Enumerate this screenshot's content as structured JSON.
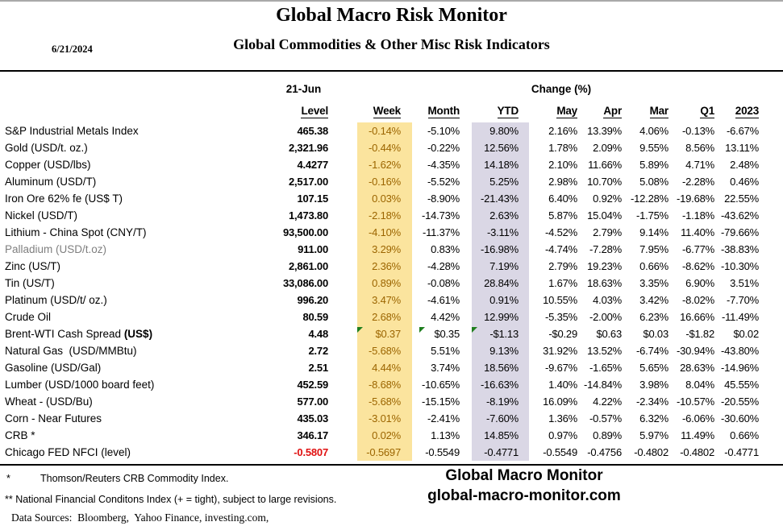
{
  "header": {
    "date": "6/21/2024",
    "title": "Global Macro Risk Monitor",
    "subtitle": "Global Commodities & Other Misc Risk Indicators"
  },
  "table": {
    "group_headers": {
      "level": "21-Jun",
      "change": "Change (%)"
    },
    "columns": [
      "Level",
      "Week",
      "Month",
      "YTD",
      "May",
      "Apr",
      "Mar",
      "Q1",
      "2023"
    ],
    "rows": [
      {
        "label": "S&P Industrial Metals Index",
        "values": [
          "465.38",
          "-0.14%",
          "-5.10%",
          "9.80%",
          "2.16%",
          "13.39%",
          "4.06%",
          "-0.13%",
          "-6.67%"
        ]
      },
      {
        "label": "Gold (USD/t. oz.)",
        "values": [
          "2,321.96",
          "-0.44%",
          "-0.22%",
          "12.56%",
          "1.78%",
          "2.09%",
          "9.55%",
          "8.56%",
          "13.11%"
        ]
      },
      {
        "label": "Copper (USD/lbs)",
        "values": [
          "4.4277",
          "-1.62%",
          "-4.35%",
          "14.18%",
          "2.10%",
          "11.66%",
          "5.89%",
          "4.71%",
          "2.48%"
        ]
      },
      {
        "label": "Aluminum (USD/T)",
        "values": [
          "2,517.00",
          "-0.16%",
          "-5.52%",
          "5.25%",
          "2.98%",
          "10.70%",
          "5.08%",
          "-2.28%",
          "0.46%"
        ]
      },
      {
        "label": "Iron Ore 62% fe (US$ T)",
        "values": [
          "107.15",
          "0.03%",
          "-8.90%",
          "-21.43%",
          "6.40%",
          "0.92%",
          "-12.28%",
          "-19.68%",
          "22.55%"
        ]
      },
      {
        "label": "Nickel (USD/T)",
        "values": [
          "1,473.80",
          "-2.18%",
          "-14.73%",
          "2.63%",
          "5.87%",
          "15.04%",
          "-1.75%",
          "-1.18%",
          "-43.62%"
        ]
      },
      {
        "label": "Lithium - China Spot (CNY/T)",
        "values": [
          "93,500.00",
          "-4.10%",
          "-11.37%",
          "-3.11%",
          "-4.52%",
          "2.79%",
          "9.14%",
          "11.40%",
          "-79.66%"
        ]
      },
      {
        "label": "Palladium (USD/t.oz)",
        "label_gray": true,
        "values": [
          "911.00",
          "3.29%",
          "0.83%",
          "-16.98%",
          "-4.74%",
          "-7.28%",
          "7.95%",
          "-6.77%",
          "-38.83%"
        ]
      },
      {
        "label": "Zinc (US/T)",
        "values": [
          "2,861.00",
          "2.36%",
          "-4.28%",
          "7.19%",
          "2.79%",
          "19.23%",
          "0.66%",
          "-8.62%",
          "-10.30%"
        ]
      },
      {
        "label": "Tin (US/T)",
        "values": [
          "33,086.00",
          "0.89%",
          "-0.08%",
          "28.84%",
          "1.67%",
          "18.63%",
          "3.35%",
          "6.90%",
          "3.51%"
        ]
      },
      {
        "label": "Platinum (USD/t/ oz.)",
        "values": [
          "996.20",
          "3.47%",
          "-4.61%",
          "0.91%",
          "10.55%",
          "4.03%",
          "3.42%",
          "-8.02%",
          "-7.70%"
        ]
      },
      {
        "label": "Crude Oil",
        "values": [
          "80.59",
          "2.68%",
          "4.42%",
          "12.99%",
          "-5.35%",
          "-2.00%",
          "6.23%",
          "16.66%",
          "-11.49%"
        ]
      },
      {
        "label": "Brent-WTI Cash Spread ",
        "label_bold": "(US$)",
        "green_flags": [
          "week",
          "month",
          "ytd"
        ],
        "values": [
          "4.48",
          "$0.37",
          "$0.35",
          "-$1.13",
          "-$0.29",
          "$0.63",
          "$0.03",
          "-$1.82",
          "$0.02"
        ]
      },
      {
        "label": "Natural Gas  (USD/MMBtu)",
        "values": [
          "2.72",
          "-5.68%",
          "5.51%",
          "9.13%",
          "31.92%",
          "13.52%",
          "-6.74%",
          "-30.94%",
          "-43.80%"
        ]
      },
      {
        "label": "Gasoline (USD/Gal)",
        "values": [
          "2.51",
          "4.44%",
          "3.74%",
          "18.56%",
          "-9.67%",
          "-1.65%",
          "5.65%",
          "28.63%",
          "-14.96%"
        ]
      },
      {
        "label": "Lumber (USD/1000 board feet)",
        "values": [
          "452.59",
          "-8.68%",
          "-10.65%",
          "-16.63%",
          "1.40%",
          "-14.84%",
          "3.98%",
          "8.04%",
          "45.55%"
        ]
      },
      {
        "label": "Wheat - (USD/Bu)",
        "values": [
          "577.00",
          "-5.68%",
          "-15.15%",
          "-8.19%",
          "16.09%",
          "4.22%",
          "-2.34%",
          "-10.57%",
          "-20.55%"
        ]
      },
      {
        "label": "Corn - Near Futures",
        "values": [
          "435.03",
          "-3.01%",
          "-2.41%",
          "-7.60%",
          "1.36%",
          "-0.57%",
          "6.32%",
          "-6.06%",
          "-30.60%"
        ]
      },
      {
        "label": "CRB *",
        "values": [
          "346.17",
          "0.02%",
          "1.13%",
          "14.85%",
          "0.97%",
          "0.89%",
          "5.97%",
          "11.49%",
          "0.66%"
        ]
      },
      {
        "label": "Chicago FED NFCI (level)",
        "level_red": true,
        "values": [
          "-0.5807",
          "-0.5697",
          "-0.5549",
          "-0.4771",
          "-0.5549",
          "-0.4756",
          "-0.4802",
          "-0.4802",
          "-0.4771"
        ]
      }
    ]
  },
  "footnotes": {
    "crb_marker": "*",
    "crb_text": "Thomson/Reuters CRB Commodity Index.",
    "nfci_text": "** National Financial Conditons Index (+ = tight), subject to large revisions.",
    "sources_text": "Data Sources:  Bloomberg,  Yahoo Finance, investing.com,",
    "brand_name": "Global Macro Monitor",
    "brand_site": "global-macro-monitor.com"
  },
  "colors": {
    "week_highlight_bg": "#FBE49E",
    "week_highlight_text": "#9C6500",
    "ytd_highlight_bg": "#DAD7E5",
    "negative_level_text": "#E01010",
    "muted_label_text": "#7F7F7F",
    "comment_flag_green": "#1E7E1E"
  }
}
